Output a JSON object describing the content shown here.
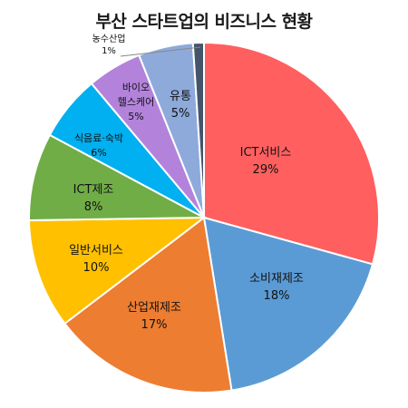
{
  "chart_data": {
    "type": "pie",
    "title": "부산 스타트업의 비즈니스 현황",
    "slices": [
      {
        "label": "ICT서비스",
        "value_label": "29%",
        "value": 29.0,
        "color": "#ff5f5f"
      },
      {
        "label": "소비재제조",
        "value_label": "18%",
        "value": 18.0,
        "color": "#5b9bd5"
      },
      {
        "label": "산업재제조",
        "value_label": "17%",
        "value": 17.0,
        "color": "#ed7d31"
      },
      {
        "label": "일반서비스",
        "value_label": "10%",
        "value": 10.0,
        "color": "#ffc000"
      },
      {
        "label": "ICT제조",
        "value_label": "8%",
        "value": 8.0,
        "color": "#70ad47"
      },
      {
        "label": "식음료·숙박",
        "value_label": "6%",
        "value": 6.0,
        "color": "#00b0f0"
      },
      {
        "label": "바이오 헬스케어",
        "value_label": "5%",
        "value": 5.0,
        "color": "#b383dc"
      },
      {
        "label": "유통",
        "value_label": "5%",
        "value": 5.0,
        "color": "#8eaadb"
      },
      {
        "label": "농수산업",
        "value_label": "1%",
        "value": 1.0,
        "color": "#44546a"
      }
    ]
  }
}
